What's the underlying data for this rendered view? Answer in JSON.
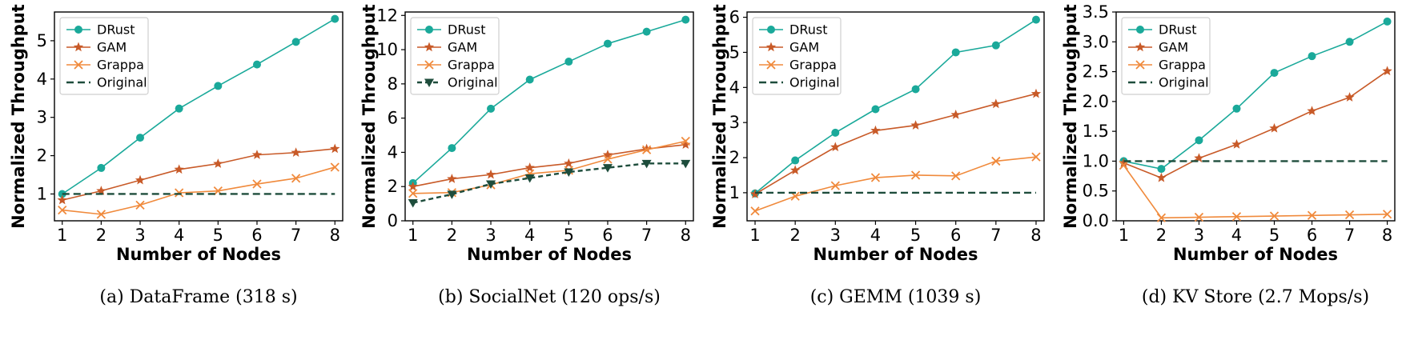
{
  "chart_data": [
    {
      "type": "line",
      "caption": "(a) DataFrame (318 s)",
      "xlabel": "Number of Nodes",
      "ylabel": "Normalized Throughput",
      "x": [
        1,
        2,
        3,
        4,
        5,
        6,
        7,
        8
      ],
      "xlim": [
        0.8,
        8.2
      ],
      "ylim": [
        0.3,
        5.75
      ],
      "yticks": [
        1,
        2,
        3,
        4,
        5
      ],
      "ytick_labels": [
        "1",
        "2",
        "3",
        "4",
        "5"
      ],
      "legend": "top-left",
      "series": [
        {
          "name": "DRust",
          "color": "#1aa99a",
          "marker": "circle",
          "dash": false,
          "values": [
            1.0,
            1.68,
            2.47,
            3.23,
            3.82,
            4.38,
            4.97,
            5.57
          ]
        },
        {
          "name": "GAM",
          "color": "#c85a28",
          "marker": "star",
          "dash": false,
          "values": [
            0.84,
            1.08,
            1.36,
            1.64,
            1.79,
            2.02,
            2.08,
            2.18
          ]
        },
        {
          "name": "Grappa",
          "color": "#f08a3c",
          "marker": "x",
          "dash": false,
          "values": [
            0.58,
            0.47,
            0.71,
            1.03,
            1.08,
            1.26,
            1.41,
            1.7
          ]
        },
        {
          "name": "Original",
          "color": "#1e4d3c",
          "marker": "none",
          "dash": true,
          "values": [
            1,
            1,
            1,
            1,
            1,
            1,
            1,
            1
          ]
        }
      ]
    },
    {
      "type": "line",
      "caption": "(b) SocialNet (120 ops/s)",
      "xlabel": "Number of Nodes",
      "ylabel": "Normalized Throughput",
      "x": [
        1,
        2,
        3,
        4,
        5,
        6,
        7,
        8
      ],
      "xlim": [
        0.8,
        8.2
      ],
      "ylim": [
        0,
        12.2
      ],
      "yticks": [
        0,
        2,
        4,
        6,
        8,
        10,
        12
      ],
      "ytick_labels": [
        "0",
        "2",
        "4",
        "6",
        "8",
        "10",
        "12"
      ],
      "legend": "top-left",
      "series": [
        {
          "name": "DRust",
          "color": "#1aa99a",
          "marker": "circle",
          "dash": false,
          "values": [
            2.2,
            4.25,
            6.55,
            8.25,
            9.3,
            10.35,
            11.05,
            11.75
          ]
        },
        {
          "name": "GAM",
          "color": "#c85a28",
          "marker": "star",
          "dash": false,
          "values": [
            2.0,
            2.45,
            2.7,
            3.1,
            3.35,
            3.85,
            4.2,
            4.45
          ]
        },
        {
          "name": "Grappa",
          "color": "#f08a3c",
          "marker": "x",
          "dash": false,
          "values": [
            1.6,
            1.65,
            2.1,
            2.75,
            2.95,
            3.6,
            4.15,
            4.65
          ]
        },
        {
          "name": "Original",
          "color": "#1e4d3c",
          "marker": "triangle-down",
          "dash": true,
          "values": [
            1.05,
            1.55,
            2.15,
            2.5,
            2.85,
            3.1,
            3.35,
            3.35
          ]
        }
      ]
    },
    {
      "type": "line",
      "caption": "(c) GEMM (1039 s)",
      "xlabel": "Number of Nodes",
      "ylabel": "Normalized Throughput",
      "x": [
        1,
        2,
        3,
        4,
        5,
        6,
        7,
        8
      ],
      "xlim": [
        0.8,
        8.2
      ],
      "ylim": [
        0.2,
        6.15
      ],
      "yticks": [
        1,
        2,
        3,
        4,
        5,
        6
      ],
      "ytick_labels": [
        "1",
        "2",
        "3",
        "4",
        "5",
        "6"
      ],
      "legend": "top-left",
      "series": [
        {
          "name": "DRust",
          "color": "#1aa99a",
          "marker": "circle",
          "dash": false,
          "values": [
            0.98,
            1.92,
            2.71,
            3.38,
            3.95,
            5.0,
            5.2,
            5.93
          ]
        },
        {
          "name": "GAM",
          "color": "#c85a28",
          "marker": "star",
          "dash": false,
          "values": [
            0.96,
            1.64,
            2.3,
            2.77,
            2.92,
            3.22,
            3.53,
            3.82
          ]
        },
        {
          "name": "Grappa",
          "color": "#f08a3c",
          "marker": "x",
          "dash": false,
          "values": [
            0.48,
            0.9,
            1.2,
            1.43,
            1.5,
            1.48,
            1.9,
            2.02
          ]
        },
        {
          "name": "Original",
          "color": "#1e4d3c",
          "marker": "none",
          "dash": true,
          "values": [
            1,
            1,
            1,
            1,
            1,
            1,
            1,
            1
          ]
        }
      ]
    },
    {
      "type": "line",
      "caption": "(d) KV Store (2.7 Mops/s)",
      "xlabel": "Number of Nodes",
      "ylabel": "Normalized Throughput",
      "x": [
        1,
        2,
        3,
        4,
        5,
        6,
        7,
        8
      ],
      "xlim": [
        0.8,
        8.2
      ],
      "ylim": [
        0,
        3.5
      ],
      "yticks": [
        0,
        0.5,
        1,
        1.5,
        2,
        2.5,
        3,
        3.5
      ],
      "ytick_labels": [
        "0.0",
        "0.5",
        "1.0",
        "1.5",
        "2.0",
        "2.5",
        "3.0",
        "3.5"
      ],
      "legend": "top-left",
      "series": [
        {
          "name": "DRust",
          "color": "#1aa99a",
          "marker": "circle",
          "dash": false,
          "values": [
            1.0,
            0.87,
            1.35,
            1.88,
            2.48,
            2.76,
            3.0,
            3.34
          ]
        },
        {
          "name": "GAM",
          "color": "#c85a28",
          "marker": "star",
          "dash": false,
          "values": [
            0.97,
            0.72,
            1.05,
            1.28,
            1.55,
            1.84,
            2.07,
            2.51
          ]
        },
        {
          "name": "Grappa",
          "color": "#f08a3c",
          "marker": "x",
          "dash": false,
          "values": [
            0.93,
            0.05,
            0.06,
            0.07,
            0.08,
            0.09,
            0.1,
            0.11
          ]
        },
        {
          "name": "Original",
          "color": "#1e4d3c",
          "marker": "none",
          "dash": true,
          "values": [
            1,
            1,
            1,
            1,
            1,
            1,
            1,
            1
          ]
        }
      ]
    }
  ]
}
